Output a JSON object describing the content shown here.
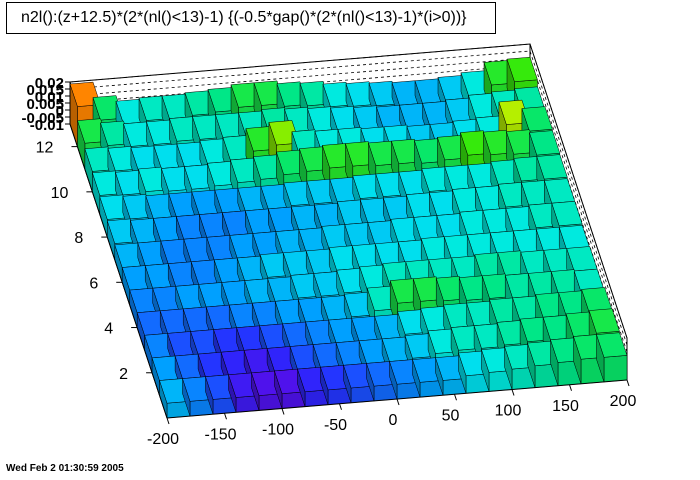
{
  "chart": {
    "title": "n2l():(z+12.5)*(2*(nl()<13)-1) {(-0.5*gap()*(2*(nl()<13)-1)*(i>0))}",
    "timestamp": "Wed Feb  2 01:30:59 2005"
  },
  "chart_data": {
    "type": "lego",
    "title": "n2l():(z+12.5)*(2*(nl()<13)-1) {(-0.5*gap()*(2*(nl()<13)-1)*(i>0))}",
    "x_ticks": [
      -200,
      -150,
      -100,
      -50,
      0,
      50,
      100,
      150,
      200
    ],
    "y_ticks": [
      2,
      4,
      6,
      8,
      10,
      12
    ],
    "z_ticks": [
      "0.02",
      "0.015",
      "0.01",
      "0.005",
      "0",
      "-0.005",
      "-0.01"
    ],
    "xlim": [
      -200,
      200
    ],
    "ylim": [
      0,
      13
    ],
    "zlim": [
      -0.01,
      0.02
    ],
    "nx": 20,
    "ny": 13,
    "z_rows": [
      [
        0.0,
        -0.002,
        -0.004,
        -0.007,
        -0.008,
        -0.008,
        -0.006,
        -0.005,
        -0.004,
        -0.003,
        -0.002,
        -0.001,
        0.0,
        0.002,
        0.003,
        0.004,
        0.005,
        0.006,
        0.007,
        0.007
      ],
      [
        -0.001,
        -0.003,
        -0.005,
        -0.006,
        -0.007,
        -0.006,
        -0.004,
        -0.003,
        -0.002,
        -0.001,
        0.0,
        0.001,
        0.003,
        0.004,
        0.004,
        0.005,
        0.006,
        0.006,
        0.007,
        0.008
      ],
      [
        -0.002,
        -0.004,
        -0.004,
        -0.005,
        -0.005,
        -0.004,
        -0.003,
        -0.002,
        -0.001,
        -0.001,
        0.0,
        0.002,
        0.003,
        0.004,
        0.004,
        0.005,
        0.005,
        0.006,
        0.006,
        0.007
      ],
      [
        -0.003,
        -0.003,
        -0.003,
        -0.003,
        -0.002,
        -0.002,
        -0.001,
        -0.001,
        0.0,
        0.001,
        0.004,
        0.008,
        0.008,
        0.007,
        0.006,
        0.006,
        0.005,
        0.005,
        0.005,
        0.004
      ],
      [
        -0.002,
        -0.002,
        -0.001,
        -0.001,
        -0.001,
        0.0,
        0.0,
        0.001,
        0.001,
        0.002,
        0.003,
        0.004,
        0.004,
        0.004,
        0.004,
        0.005,
        0.005,
        0.004,
        0.004,
        0.004
      ],
      [
        -0.001,
        -0.001,
        -0.002,
        -0.002,
        -0.001,
        0.0,
        0.001,
        0.001,
        0.001,
        0.002,
        0.002,
        0.002,
        0.002,
        0.003,
        0.003,
        0.003,
        0.003,
        0.003,
        0.003,
        0.003
      ],
      [
        0.0,
        -0.001,
        -0.002,
        -0.002,
        -0.002,
        -0.001,
        -0.001,
        0.0,
        0.0,
        0.001,
        0.001,
        0.001,
        0.002,
        0.002,
        0.002,
        0.003,
        0.003,
        0.003,
        0.004,
        0.004
      ],
      [
        0.001,
        0.0,
        -0.001,
        -0.002,
        -0.002,
        -0.002,
        -0.001,
        -0.001,
        0.0,
        0.0,
        0.001,
        0.001,
        0.001,
        0.002,
        0.002,
        0.003,
        0.003,
        0.004,
        0.004,
        0.004
      ],
      [
        0.002,
        0.001,
        0.0,
        -0.001,
        -0.001,
        -0.001,
        0.0,
        0.0,
        0.001,
        0.001,
        0.001,
        0.002,
        0.002,
        0.002,
        0.003,
        0.003,
        0.003,
        0.004,
        0.005,
        0.005
      ],
      [
        0.003,
        0.002,
        0.003,
        0.002,
        0.002,
        0.003,
        0.004,
        0.005,
        0.007,
        0.008,
        0.009,
        0.009,
        0.008,
        0.008,
        0.007,
        0.008,
        0.01,
        0.009,
        0.008,
        0.006
      ],
      [
        0.004,
        0.003,
        0.002,
        0.002,
        0.002,
        0.003,
        0.004,
        0.009,
        0.012,
        0.004,
        0.003,
        0.003,
        0.002,
        0.002,
        0.001,
        0.001,
        0.002,
        0.003,
        0.013,
        0.007
      ],
      [
        0.008,
        0.005,
        0.003,
        0.003,
        0.004,
        0.004,
        0.004,
        0.004,
        0.005,
        0.004,
        0.003,
        0.002,
        0.001,
        0.0,
        0.0,
        0.0,
        0.001,
        0.003,
        0.004,
        0.005
      ],
      [
        0.018,
        0.007,
        0.003,
        0.004,
        0.004,
        0.005,
        0.006,
        0.008,
        0.008,
        0.006,
        0.005,
        0.003,
        0.002,
        0.001,
        0.0,
        0.0,
        0.001,
        0.003,
        0.009,
        0.01
      ]
    ],
    "grid": true,
    "legend": "none"
  }
}
